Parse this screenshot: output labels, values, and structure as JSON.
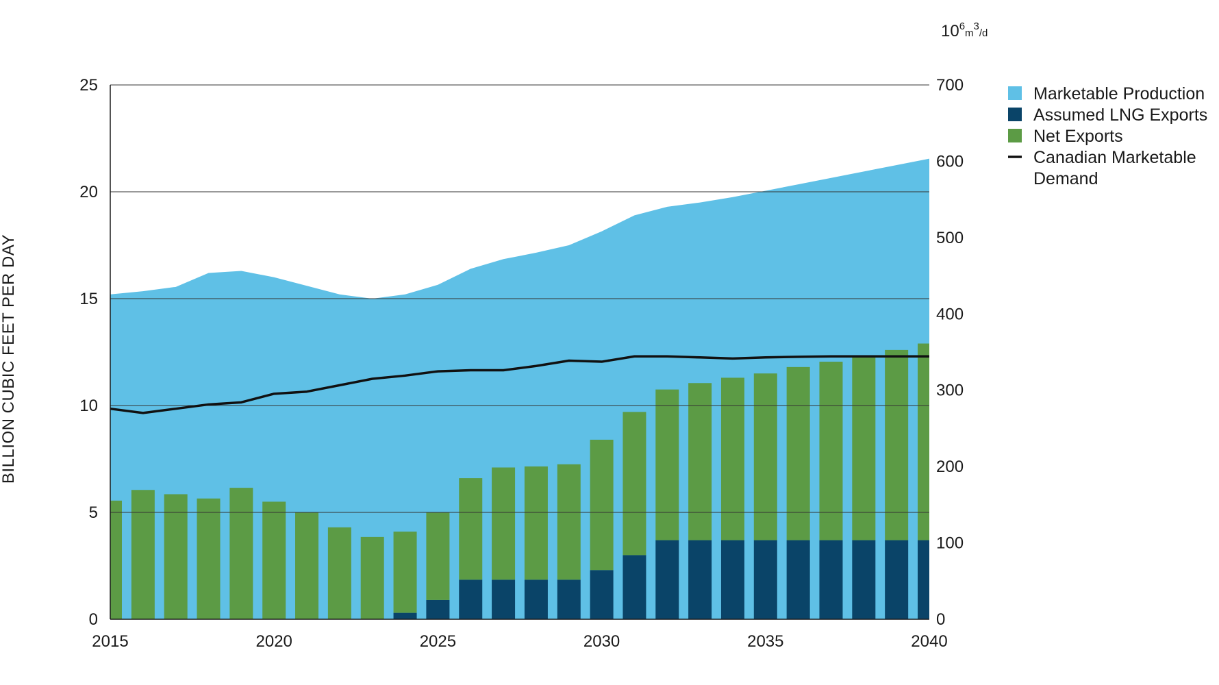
{
  "chart_data": {
    "type": "bar",
    "title": "",
    "ylabel": "BILLION CUBIC FEET PER DAY",
    "y2label_parts": {
      "base": "10",
      "exp1": "6",
      "unit": "m",
      "exp2": "3",
      "tail": "/d"
    },
    "ylim": [
      0,
      25
    ],
    "y2lim": [
      0,
      700
    ],
    "xlim": [
      2015,
      2040
    ],
    "x_ticks": [
      2015,
      2020,
      2025,
      2030,
      2035,
      2040
    ],
    "y_ticks": [
      0,
      5,
      10,
      15,
      20,
      25
    ],
    "y2_ticks": [
      0,
      100,
      200,
      300,
      400,
      500,
      600,
      700
    ],
    "grid": true,
    "legend_position": "right",
    "years": [
      2015,
      2016,
      2017,
      2018,
      2019,
      2020,
      2021,
      2022,
      2023,
      2024,
      2025,
      2026,
      2027,
      2028,
      2029,
      2030,
      2031,
      2032,
      2033,
      2034,
      2035,
      2036,
      2037,
      2038,
      2039,
      2040
    ],
    "series": [
      {
        "name": "Marketable Production",
        "kind": "area",
        "color": "#5fc0e6",
        "values": [
          15.2,
          15.35,
          15.55,
          16.2,
          16.3,
          16.0,
          15.6,
          15.2,
          15.0,
          15.2,
          15.65,
          16.4,
          16.85,
          17.15,
          17.5,
          18.15,
          18.9,
          19.3,
          19.5,
          19.75,
          20.05,
          20.35,
          20.65,
          20.95,
          21.25,
          21.55
        ]
      },
      {
        "name": "Assumed LNG Exports",
        "kind": "bar",
        "color": "#0a4468",
        "values": [
          0,
          0,
          0,
          0,
          0,
          0,
          0,
          0,
          0,
          0.3,
          0.9,
          1.85,
          1.85,
          1.85,
          1.85,
          2.3,
          3.0,
          3.7,
          3.7,
          3.7,
          3.7,
          3.7,
          3.7,
          3.7,
          3.7,
          3.7
        ]
      },
      {
        "name": "Net Exports",
        "kind": "bar",
        "color": "#5c9b45",
        "values": [
          5.55,
          6.05,
          5.85,
          5.65,
          6.15,
          5.5,
          5.0,
          4.3,
          3.85,
          3.8,
          4.1,
          4.75,
          5.25,
          5.3,
          5.4,
          6.1,
          6.7,
          7.05,
          7.35,
          7.6,
          7.8,
          8.1,
          8.35,
          8.65,
          8.9,
          9.2
        ]
      },
      {
        "name": "Canadian Marketable Demand",
        "kind": "line",
        "color": "#111111",
        "values": [
          9.85,
          9.65,
          9.85,
          10.05,
          10.15,
          10.55,
          10.65,
          10.95,
          11.25,
          11.4,
          11.6,
          11.65,
          11.65,
          11.85,
          12.1,
          12.05,
          12.3,
          12.3,
          12.25,
          12.2,
          12.25,
          12.28,
          12.3,
          12.3,
          12.3,
          12.3
        ]
      }
    ]
  },
  "legend": {
    "items": [
      {
        "lines": [
          "Marketable Production"
        ],
        "color": "#5fc0e6",
        "symbol": "square"
      },
      {
        "lines": [
          "Assumed LNG Exports"
        ],
        "color": "#0a4468",
        "symbol": "square"
      },
      {
        "lines": [
          "Net Exports"
        ],
        "color": "#5c9b45",
        "symbol": "square"
      },
      {
        "lines": [
          "Canadian Marketable",
          "Demand"
        ],
        "color": "#111111",
        "symbol": "line"
      }
    ]
  }
}
